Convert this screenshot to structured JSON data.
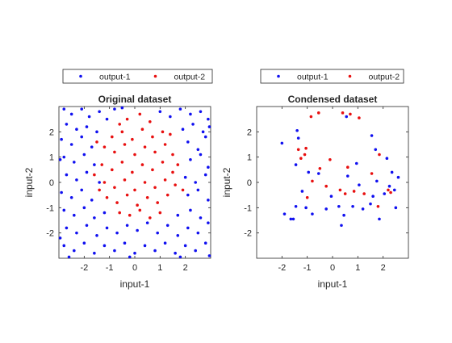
{
  "chart_data": [
    {
      "type": "scatter",
      "title": "Original dataset",
      "xlabel": "input-1",
      "ylabel": "input-2",
      "xlim": [
        -3,
        3
      ],
      "ylim": [
        -3,
        3
      ],
      "xticks": [
        -2,
        -1,
        0,
        1,
        2
      ],
      "yticks": [
        -2,
        -1,
        0,
        1,
        2
      ],
      "legend_position": "top",
      "series": [
        {
          "name": "output-1",
          "color": "#1010f0",
          "points": [
            [
              -2.8,
              2.9
            ],
            [
              -2.5,
              2.7
            ],
            [
              -2.1,
              2.9
            ],
            [
              -1.8,
              2.6
            ],
            [
              -1.4,
              2.8
            ],
            [
              -1.1,
              2.5
            ],
            [
              -0.8,
              2.9
            ],
            [
              1.0,
              2.8
            ],
            [
              1.4,
              2.6
            ],
            [
              1.8,
              2.9
            ],
            [
              2.2,
              2.7
            ],
            [
              2.6,
              2.8
            ],
            [
              2.9,
              2.5
            ],
            [
              -2.7,
              2.3
            ],
            [
              -2.3,
              2.1
            ],
            [
              -1.9,
              2.2
            ],
            [
              -1.5,
              2.0
            ],
            [
              1.9,
              2.1
            ],
            [
              2.3,
              2.3
            ],
            [
              2.7,
              2.0
            ],
            [
              -2.9,
              1.7
            ],
            [
              -2.5,
              1.5
            ],
            [
              -2.1,
              1.8
            ],
            [
              -1.7,
              1.4
            ],
            [
              2.1,
              1.6
            ],
            [
              2.5,
              1.3
            ],
            [
              2.8,
              1.8
            ],
            [
              -2.8,
              1.0
            ],
            [
              -2.4,
              0.8
            ],
            [
              -2.0,
              1.1
            ],
            [
              -1.6,
              0.7
            ],
            [
              2.2,
              0.9
            ],
            [
              2.6,
              1.1
            ],
            [
              2.9,
              0.6
            ],
            [
              -2.7,
              0.3
            ],
            [
              -2.3,
              0.1
            ],
            [
              -1.9,
              0.4
            ],
            [
              -1.4,
              0.0
            ],
            [
              2.0,
              0.2
            ],
            [
              2.4,
              0.0
            ],
            [
              2.8,
              0.3
            ],
            [
              -2.9,
              -0.4
            ],
            [
              -2.5,
              -0.6
            ],
            [
              -2.1,
              -0.3
            ],
            [
              -1.7,
              -0.7
            ],
            [
              2.1,
              -0.5
            ],
            [
              2.5,
              -0.3
            ],
            [
              2.9,
              -0.7
            ],
            [
              -2.8,
              -1.1
            ],
            [
              -2.4,
              -1.3
            ],
            [
              -2.0,
              -1.0
            ],
            [
              -1.6,
              -1.4
            ],
            [
              -1.2,
              -1.2
            ],
            [
              1.7,
              -1.3
            ],
            [
              2.2,
              -1.1
            ],
            [
              2.6,
              -1.4
            ],
            [
              -2.7,
              -1.8
            ],
            [
              -2.3,
              -2.0
            ],
            [
              -1.9,
              -1.7
            ],
            [
              -1.5,
              -2.1
            ],
            [
              -1.1,
              -1.8
            ],
            [
              -0.7,
              -2.0
            ],
            [
              -0.3,
              -1.7
            ],
            [
              0.1,
              -1.9
            ],
            [
              0.5,
              -1.6
            ],
            [
              0.9,
              -2.0
            ],
            [
              1.3,
              -1.7
            ],
            [
              1.7,
              -2.1
            ],
            [
              2.1,
              -1.8
            ],
            [
              2.5,
              -2.0
            ],
            [
              2.9,
              -1.6
            ],
            [
              -2.8,
              -2.5
            ],
            [
              -2.4,
              -2.7
            ],
            [
              -2.0,
              -2.4
            ],
            [
              -1.6,
              -2.8
            ],
            [
              -1.2,
              -2.5
            ],
            [
              -0.8,
              -2.7
            ],
            [
              -0.4,
              -2.4
            ],
            [
              0.0,
              -2.8
            ],
            [
              0.4,
              -2.5
            ],
            [
              0.8,
              -2.7
            ],
            [
              1.2,
              -2.4
            ],
            [
              1.6,
              -2.8
            ],
            [
              2.0,
              -2.5
            ],
            [
              2.4,
              -2.7
            ],
            [
              2.8,
              -2.4
            ],
            [
              -2.6,
              -2.95
            ],
            [
              -0.2,
              -2.95
            ],
            [
              1.8,
              -2.95
            ],
            [
              2.95,
              -2.9
            ],
            [
              -2.95,
              -2.2
            ],
            [
              -2.95,
              0.9
            ],
            [
              2.95,
              2.2
            ],
            [
              -0.5,
              2.95
            ]
          ]
        },
        {
          "name": "output-2",
          "color": "#e81010",
          "points": [
            [
              -0.9,
              1.8
            ],
            [
              -0.5,
              2.0
            ],
            [
              -0.1,
              1.7
            ],
            [
              0.3,
              2.1
            ],
            [
              0.7,
              1.8
            ],
            [
              1.1,
              2.0
            ],
            [
              -1.2,
              1.4
            ],
            [
              -0.8,
              1.2
            ],
            [
              -0.4,
              1.5
            ],
            [
              0.0,
              1.1
            ],
            [
              0.4,
              1.4
            ],
            [
              0.8,
              1.2
            ],
            [
              1.2,
              1.5
            ],
            [
              1.5,
              1.1
            ],
            [
              -1.3,
              0.7
            ],
            [
              -0.9,
              0.5
            ],
            [
              -0.5,
              0.8
            ],
            [
              -0.1,
              0.4
            ],
            [
              0.3,
              0.7
            ],
            [
              0.7,
              0.5
            ],
            [
              1.1,
              0.8
            ],
            [
              1.5,
              0.4
            ],
            [
              -1.2,
              0.0
            ],
            [
              -0.8,
              -0.2
            ],
            [
              -0.4,
              0.1
            ],
            [
              0.0,
              -0.3
            ],
            [
              0.4,
              0.0
            ],
            [
              0.8,
              -0.2
            ],
            [
              1.2,
              0.1
            ],
            [
              1.6,
              -0.1
            ],
            [
              -1.1,
              -0.6
            ],
            [
              -0.7,
              -0.8
            ],
            [
              -0.3,
              -0.5
            ],
            [
              0.1,
              -0.9
            ],
            [
              0.5,
              -0.6
            ],
            [
              0.9,
              -0.8
            ],
            [
              1.3,
              -0.5
            ],
            [
              -0.6,
              -1.2
            ],
            [
              -0.2,
              -1.3
            ],
            [
              0.2,
              -1.1
            ],
            [
              0.6,
              -1.4
            ],
            [
              1.0,
              -1.2
            ],
            [
              -0.3,
              2.5
            ],
            [
              0.2,
              2.7
            ],
            [
              0.6,
              2.4
            ],
            [
              -0.6,
              2.3
            ],
            [
              1.4,
              1.9
            ],
            [
              -1.5,
              1.6
            ],
            [
              1.7,
              0.7
            ],
            [
              -1.6,
              0.3
            ],
            [
              1.9,
              -0.3
            ],
            [
              -1.4,
              -0.3
            ]
          ]
        }
      ]
    },
    {
      "type": "scatter",
      "title": "Condensed dataset",
      "xlabel": "input-1",
      "ylabel": "input-2",
      "xlim": [
        -3,
        3
      ],
      "ylim": [
        -3,
        3
      ],
      "xticks": [
        -2,
        -1,
        0,
        1,
        2
      ],
      "yticks": [
        -2,
        -1,
        0,
        1,
        2
      ],
      "legend_position": "top",
      "series": [
        {
          "name": "output-1",
          "color": "#1010f0",
          "points": [
            [
              -2.0,
              1.55
            ],
            [
              -1.9,
              -1.25
            ],
            [
              -1.55,
              -1.45
            ],
            [
              -1.45,
              0.7
            ],
            [
              -1.35,
              1.75
            ],
            [
              -1.45,
              -0.95
            ],
            [
              -1.2,
              -0.35
            ],
            [
              -1.05,
              -1.0
            ],
            [
              -0.95,
              0.4
            ],
            [
              -0.8,
              -1.25
            ],
            [
              -0.55,
              0.35
            ],
            [
              -0.25,
              -1.05
            ],
            [
              -0.05,
              -0.55
            ],
            [
              0.25,
              -0.95
            ],
            [
              0.35,
              -1.7
            ],
            [
              0.6,
              0.25
            ],
            [
              0.8,
              -0.95
            ],
            [
              0.95,
              0.75
            ],
            [
              0.55,
              2.6
            ],
            [
              1.05,
              -0.1
            ],
            [
              1.2,
              -1.05
            ],
            [
              1.5,
              -0.85
            ],
            [
              1.75,
              0.05
            ],
            [
              1.55,
              1.85
            ],
            [
              1.7,
              1.3
            ],
            [
              1.85,
              -1.45
            ],
            [
              2.05,
              -0.45
            ],
            [
              2.15,
              0.95
            ],
            [
              2.25,
              -0.15
            ],
            [
              2.35,
              0.4
            ],
            [
              2.45,
              -0.3
            ],
            [
              2.5,
              -1.0
            ],
            [
              2.6,
              0.2
            ],
            [
              -1.65,
              -1.45
            ],
            [
              1.6,
              -0.55
            ],
            [
              0.45,
              -1.3
            ],
            [
              -1.4,
              2.05
            ]
          ]
        },
        {
          "name": "output-2",
          "color": "#e81010",
          "points": [
            [
              -1.35,
              1.3
            ],
            [
              -1.25,
              0.95
            ],
            [
              -1.05,
              1.35
            ],
            [
              -1.0,
              -0.6
            ],
            [
              -0.85,
              2.6
            ],
            [
              -0.55,
              2.75
            ],
            [
              -0.5,
              0.55
            ],
            [
              -0.25,
              -0.15
            ],
            [
              -0.1,
              0.9
            ],
            [
              0.3,
              -0.3
            ],
            [
              0.4,
              2.75
            ],
            [
              0.5,
              -0.45
            ],
            [
              0.6,
              0.6
            ],
            [
              0.7,
              2.7
            ],
            [
              0.85,
              -0.35
            ],
            [
              1.05,
              2.55
            ],
            [
              1.25,
              -0.45
            ],
            [
              1.55,
              0.35
            ],
            [
              1.8,
              -0.95
            ],
            [
              1.85,
              1.1
            ],
            [
              2.2,
              -0.3
            ],
            [
              2.3,
              -0.4
            ],
            [
              -1.1,
              1.1
            ],
            [
              -0.8,
              0.05
            ]
          ]
        }
      ]
    }
  ]
}
